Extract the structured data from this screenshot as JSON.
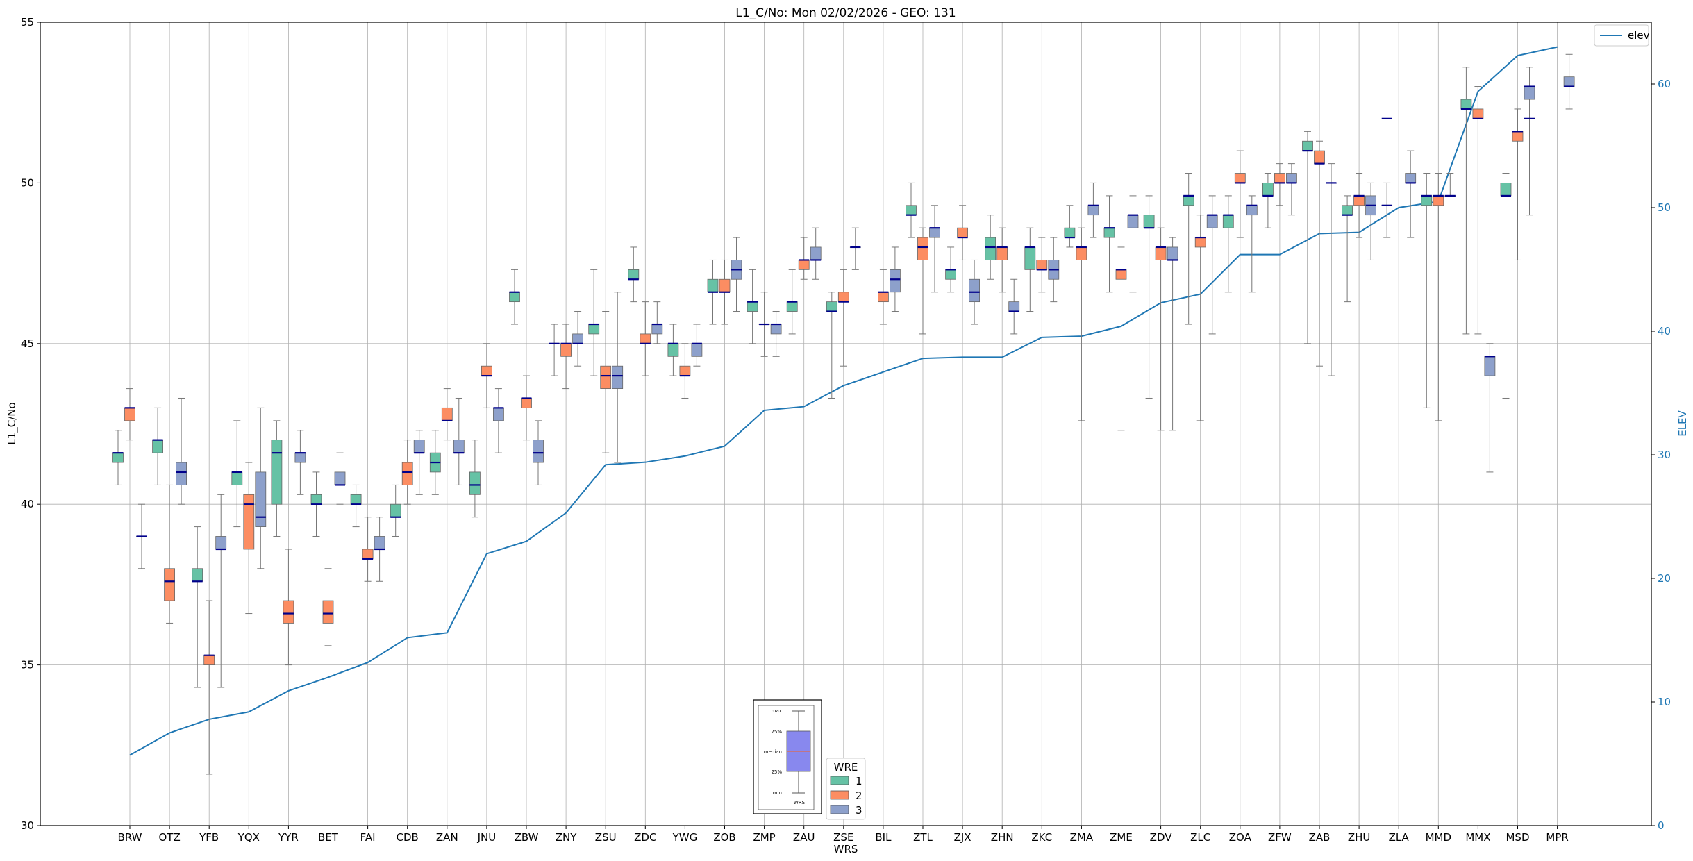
{
  "chart_data": {
    "type": "box",
    "title": "L1_C/No: Mon 02/02/2026 - GEO: 131",
    "xlabel": "WRS",
    "ylabel": "L1_C/No",
    "ylabel_right": "ELEV",
    "ylim": [
      30,
      55
    ],
    "yticks": [
      30,
      35,
      40,
      45,
      50,
      55
    ],
    "ylim_right": [
      0,
      65
    ],
    "yticks_right": [
      0,
      10,
      20,
      30,
      40,
      50,
      60
    ],
    "grid": true,
    "categories": [
      "BRW",
      "OTZ",
      "YFB",
      "YQX",
      "YYR",
      "BET",
      "FAI",
      "CDB",
      "ZAN",
      "JNU",
      "ZBW",
      "ZNY",
      "ZSU",
      "ZDC",
      "YWG",
      "ZOB",
      "ZMP",
      "ZAU",
      "ZSE",
      "BIL",
      "ZTL",
      "ZJX",
      "ZHN",
      "ZKC",
      "ZMA",
      "ZME",
      "ZDV",
      "ZLC",
      "ZOA",
      "ZFW",
      "ZAB",
      "ZHU",
      "ZLA",
      "MMD",
      "MMX",
      "MSD",
      "MPR"
    ],
    "series": [
      {
        "name": "1",
        "color": "#66c2a5",
        "boxes": [
          {
            "min": 40.6,
            "q1": 41.3,
            "median": 41.6,
            "q3": 41.6,
            "max": 42.3
          },
          {
            "min": 40.6,
            "q1": 41.6,
            "median": 42.0,
            "q3": 42.0,
            "max": 43.0
          },
          {
            "min": 34.3,
            "q1": 37.6,
            "median": 37.6,
            "q3": 38.0,
            "max": 39.3
          },
          {
            "min": 39.3,
            "q1": 40.6,
            "median": 41.0,
            "q3": 41.0,
            "max": 42.6
          },
          {
            "min": 39.0,
            "q1": 40.0,
            "median": 41.6,
            "q3": 42.0,
            "max": 42.6
          },
          {
            "min": 39.0,
            "q1": 40.0,
            "median": 40.0,
            "q3": 40.3,
            "max": 41.0
          },
          {
            "min": 39.3,
            "q1": 40.0,
            "median": 40.0,
            "q3": 40.3,
            "max": 40.6
          },
          {
            "min": 39.0,
            "q1": 39.6,
            "median": 39.6,
            "q3": 40.0,
            "max": 40.6
          },
          {
            "min": 40.3,
            "q1": 41.0,
            "median": 41.3,
            "q3": 41.6,
            "max": 42.3
          },
          {
            "min": 39.6,
            "q1": 40.3,
            "median": 40.6,
            "q3": 41.0,
            "max": 42.0
          },
          {
            "min": 45.6,
            "q1": 46.3,
            "median": 46.6,
            "q3": 46.6,
            "max": 47.3
          },
          {
            "min": 44.0,
            "q1": 45.0,
            "median": 45.0,
            "q3": 45.0,
            "max": 45.6
          },
          {
            "min": 44.0,
            "q1": 45.3,
            "median": 45.6,
            "q3": 45.6,
            "max": 47.3
          },
          {
            "min": 46.3,
            "q1": 47.0,
            "median": 47.0,
            "q3": 47.3,
            "max": 48.0
          },
          {
            "min": 44.0,
            "q1": 44.6,
            "median": 45.0,
            "q3": 45.0,
            "max": 45.6
          },
          {
            "min": 45.6,
            "q1": 46.6,
            "median": 46.6,
            "q3": 47.0,
            "max": 47.6
          },
          {
            "min": 45.0,
            "q1": 46.0,
            "median": 46.3,
            "q3": 46.3,
            "max": 47.3
          },
          {
            "min": 45.3,
            "q1": 46.0,
            "median": 46.3,
            "q3": 46.3,
            "max": 47.3
          },
          {
            "min": 43.3,
            "q1": 46.0,
            "median": 46.0,
            "q3": 46.3,
            "max": 46.6
          },
          null,
          {
            "min": 48.3,
            "q1": 49.0,
            "median": 49.0,
            "q3": 49.3,
            "max": 50.0
          },
          {
            "min": 46.6,
            "q1": 47.0,
            "median": 47.3,
            "q3": 47.3,
            "max": 48.0
          },
          {
            "min": 47.0,
            "q1": 47.6,
            "median": 48.0,
            "q3": 48.3,
            "max": 49.0
          },
          {
            "min": 46.0,
            "q1": 47.3,
            "median": 48.0,
            "q3": 48.0,
            "max": 48.6
          },
          {
            "min": 48.0,
            "q1": 48.3,
            "median": 48.3,
            "q3": 48.6,
            "max": 49.3
          },
          {
            "min": 46.6,
            "q1": 48.3,
            "median": 48.6,
            "q3": 48.6,
            "max": 49.6
          },
          {
            "min": 43.3,
            "q1": 48.6,
            "median": 48.6,
            "q3": 49.0,
            "max": 49.6
          },
          {
            "min": 45.6,
            "q1": 49.3,
            "median": 49.6,
            "q3": 49.6,
            "max": 50.3
          },
          {
            "min": 46.6,
            "q1": 48.6,
            "median": 49.0,
            "q3": 49.0,
            "max": 49.6
          },
          {
            "min": 48.6,
            "q1": 49.6,
            "median": 49.6,
            "q3": 50.0,
            "max": 50.3
          },
          {
            "min": 45.0,
            "q1": 51.0,
            "median": 51.0,
            "q3": 51.3,
            "max": 51.6
          },
          {
            "min": 46.3,
            "q1": 49.0,
            "median": 49.0,
            "q3": 49.3,
            "max": 49.6
          },
          {
            "min": 48.3,
            "q1": 49.3,
            "median": 49.3,
            "q3": 49.3,
            "max": 50.0
          },
          {
            "min": 43.0,
            "q1": 49.3,
            "median": 49.6,
            "q3": 49.6,
            "max": 50.3
          },
          {
            "min": 45.3,
            "q1": 52.3,
            "median": 52.3,
            "q3": 52.6,
            "max": 53.6
          },
          {
            "min": 43.3,
            "q1": 49.6,
            "median": 49.6,
            "q3": 50.0,
            "max": 50.3
          },
          null
        ]
      },
      {
        "name": "2",
        "color": "#fc8d62",
        "boxes": [
          {
            "min": 42.0,
            "q1": 42.6,
            "median": 43.0,
            "q3": 43.0,
            "max": 43.6
          },
          {
            "min": 36.3,
            "q1": 37.0,
            "median": 37.6,
            "q3": 38.0,
            "max": 40.6
          },
          {
            "min": 31.6,
            "q1": 35.0,
            "median": 35.3,
            "q3": 35.3,
            "max": 37.0
          },
          {
            "min": 36.6,
            "q1": 38.6,
            "median": 40.0,
            "q3": 40.3,
            "max": 41.3
          },
          {
            "min": 35.0,
            "q1": 36.3,
            "median": 36.6,
            "q3": 37.0,
            "max": 38.6
          },
          {
            "min": 35.6,
            "q1": 36.3,
            "median": 36.6,
            "q3": 37.0,
            "max": 38.0
          },
          {
            "min": 37.6,
            "q1": 38.3,
            "median": 38.3,
            "q3": 38.6,
            "max": 39.6
          },
          {
            "min": 40.0,
            "q1": 40.6,
            "median": 41.0,
            "q3": 41.3,
            "max": 42.0
          },
          {
            "min": 42.0,
            "q1": 42.6,
            "median": 42.6,
            "q3": 43.0,
            "max": 43.6
          },
          {
            "min": 43.0,
            "q1": 44.0,
            "median": 44.0,
            "q3": 44.3,
            "max": 45.0
          },
          {
            "min": 42.0,
            "q1": 43.0,
            "median": 43.3,
            "q3": 43.3,
            "max": 44.0
          },
          {
            "min": 43.6,
            "q1": 44.6,
            "median": 45.0,
            "q3": 45.0,
            "max": 45.6
          },
          {
            "min": 41.6,
            "q1": 43.6,
            "median": 44.0,
            "q3": 44.3,
            "max": 46.0
          },
          {
            "min": 44.0,
            "q1": 45.0,
            "median": 45.0,
            "q3": 45.3,
            "max": 46.3
          },
          {
            "min": 43.3,
            "q1": 44.0,
            "median": 44.0,
            "q3": 44.3,
            "max": 45.0
          },
          {
            "min": 45.6,
            "q1": 46.6,
            "median": 46.6,
            "q3": 47.0,
            "max": 47.6
          },
          {
            "min": 44.6,
            "q1": 45.6,
            "median": 45.6,
            "q3": 45.6,
            "max": 46.6
          },
          {
            "min": 47.0,
            "q1": 47.3,
            "median": 47.6,
            "q3": 47.6,
            "max": 48.3
          },
          {
            "min": 44.3,
            "q1": 46.3,
            "median": 46.3,
            "q3": 46.6,
            "max": 47.3
          },
          {
            "min": 45.6,
            "q1": 46.3,
            "median": 46.6,
            "q3": 46.6,
            "max": 47.3
          },
          {
            "min": 45.3,
            "q1": 47.6,
            "median": 48.0,
            "q3": 48.3,
            "max": 48.6
          },
          {
            "min": 47.6,
            "q1": 48.3,
            "median": 48.3,
            "q3": 48.6,
            "max": 49.3
          },
          {
            "min": 46.6,
            "q1": 47.6,
            "median": 48.0,
            "q3": 48.0,
            "max": 48.6
          },
          {
            "min": 46.6,
            "q1": 47.3,
            "median": 47.3,
            "q3": 47.6,
            "max": 48.3
          },
          {
            "min": 42.6,
            "q1": 47.6,
            "median": 48.0,
            "q3": 48.0,
            "max": 48.6
          },
          {
            "min": 42.3,
            "q1": 47.0,
            "median": 47.3,
            "q3": 47.3,
            "max": 48.0
          },
          {
            "min": 42.3,
            "q1": 47.6,
            "median": 48.0,
            "q3": 48.0,
            "max": 48.6
          },
          {
            "min": 42.6,
            "q1": 48.0,
            "median": 48.3,
            "q3": 48.3,
            "max": 49.0
          },
          {
            "min": 48.3,
            "q1": 50.0,
            "median": 50.0,
            "q3": 50.3,
            "max": 51.0
          },
          {
            "min": 49.3,
            "q1": 50.0,
            "median": 50.0,
            "q3": 50.3,
            "max": 50.6
          },
          {
            "min": 44.3,
            "q1": 50.6,
            "median": 50.6,
            "q3": 51.0,
            "max": 51.3
          },
          {
            "min": 48.3,
            "q1": 49.3,
            "median": 49.6,
            "q3": 49.6,
            "max": 50.3
          },
          null,
          {
            "min": 42.6,
            "q1": 49.3,
            "median": 49.6,
            "q3": 49.6,
            "max": 50.3
          },
          {
            "min": 45.3,
            "q1": 52.0,
            "median": 52.0,
            "q3": 52.3,
            "max": 53.0
          },
          {
            "min": 47.6,
            "q1": 51.3,
            "median": 51.6,
            "q3": 51.6,
            "max": 52.3
          },
          null
        ]
      },
      {
        "name": "3",
        "color": "#8da0cb",
        "boxes": [
          {
            "min": 38.0,
            "q1": 39.0,
            "median": 39.0,
            "q3": 39.0,
            "max": 40.0
          },
          {
            "min": 40.0,
            "q1": 40.6,
            "median": 41.0,
            "q3": 41.3,
            "max": 43.3
          },
          {
            "min": 34.3,
            "q1": 38.6,
            "median": 38.6,
            "q3": 39.0,
            "max": 40.3
          },
          {
            "min": 38.0,
            "q1": 39.3,
            "median": 39.6,
            "q3": 41.0,
            "max": 43.0
          },
          {
            "min": 40.3,
            "q1": 41.3,
            "median": 41.6,
            "q3": 41.6,
            "max": 42.3
          },
          {
            "min": 40.0,
            "q1": 40.6,
            "median": 40.6,
            "q3": 41.0,
            "max": 41.6
          },
          {
            "min": 37.6,
            "q1": 38.6,
            "median": 38.6,
            "q3": 39.0,
            "max": 39.6
          },
          {
            "min": 40.3,
            "q1": 41.6,
            "median": 41.6,
            "q3": 42.0,
            "max": 42.3
          },
          {
            "min": 40.6,
            "q1": 41.6,
            "median": 41.6,
            "q3": 42.0,
            "max": 43.3
          },
          {
            "min": 41.6,
            "q1": 42.6,
            "median": 43.0,
            "q3": 43.0,
            "max": 43.6
          },
          {
            "min": 40.6,
            "q1": 41.3,
            "median": 41.6,
            "q3": 42.0,
            "max": 42.6
          },
          {
            "min": 44.3,
            "q1": 45.0,
            "median": 45.0,
            "q3": 45.3,
            "max": 46.0
          },
          {
            "min": 41.3,
            "q1": 43.6,
            "median": 44.0,
            "q3": 44.3,
            "max": 46.6
          },
          {
            "min": 45.0,
            "q1": 45.3,
            "median": 45.6,
            "q3": 45.6,
            "max": 46.3
          },
          {
            "min": 44.3,
            "q1": 44.6,
            "median": 45.0,
            "q3": 45.0,
            "max": 45.6
          },
          {
            "min": 46.0,
            "q1": 47.0,
            "median": 47.3,
            "q3": 47.6,
            "max": 48.3
          },
          {
            "min": 44.6,
            "q1": 45.3,
            "median": 45.6,
            "q3": 45.6,
            "max": 46.0
          },
          {
            "min": 47.0,
            "q1": 47.6,
            "median": 47.6,
            "q3": 48.0,
            "max": 48.6
          },
          {
            "min": 47.3,
            "q1": 48.0,
            "median": 48.0,
            "q3": 48.0,
            "max": 48.6
          },
          {
            "min": 46.0,
            "q1": 46.6,
            "median": 47.0,
            "q3": 47.3,
            "max": 48.0
          },
          {
            "min": 46.6,
            "q1": 48.3,
            "median": 48.6,
            "q3": 48.6,
            "max": 49.3
          },
          {
            "min": 45.6,
            "q1": 46.3,
            "median": 46.6,
            "q3": 47.0,
            "max": 47.6
          },
          {
            "min": 45.3,
            "q1": 46.0,
            "median": 46.0,
            "q3": 46.3,
            "max": 47.0
          },
          {
            "min": 46.3,
            "q1": 47.0,
            "median": 47.3,
            "q3": 47.6,
            "max": 48.3
          },
          {
            "min": 48.3,
            "q1": 49.0,
            "median": 49.3,
            "q3": 49.3,
            "max": 50.0
          },
          {
            "min": 46.6,
            "q1": 48.6,
            "median": 49.0,
            "q3": 49.0,
            "max": 49.6
          },
          {
            "min": 42.3,
            "q1": 47.6,
            "median": 47.6,
            "q3": 48.0,
            "max": 48.3
          },
          {
            "min": 45.3,
            "q1": 48.6,
            "median": 49.0,
            "q3": 49.0,
            "max": 49.6
          },
          {
            "min": 46.6,
            "q1": 49.0,
            "median": 49.3,
            "q3": 49.3,
            "max": 49.6
          },
          {
            "min": 49.0,
            "q1": 50.0,
            "median": 50.0,
            "q3": 50.3,
            "max": 50.6
          },
          {
            "min": 44.0,
            "q1": 50.0,
            "median": 50.0,
            "q3": 50.0,
            "max": 50.6
          },
          {
            "min": 47.6,
            "q1": 49.0,
            "median": 49.3,
            "q3": 49.6,
            "max": 50.0
          },
          {
            "min": 48.3,
            "q1": 50.0,
            "median": 50.0,
            "q3": 50.3,
            "max": 51.0
          },
          {
            "min": 49.6,
            "q1": 49.6,
            "median": 49.6,
            "q3": 49.6,
            "max": 50.3
          },
          {
            "min": 41.0,
            "q1": 44.0,
            "median": 44.6,
            "q3": 44.6,
            "max": 45.0
          },
          {
            "min": 49.0,
            "q1": 52.6,
            "median": 53.0,
            "q3": 53.0,
            "max": 53.6
          },
          {
            "min": 52.3,
            "q1": 53.0,
            "median": 53.0,
            "q3": 53.3,
            "max": 54.0
          }
        ]
      }
    ],
    "singletons": [
      {
        "category": "ZLA",
        "series": "1",
        "value": 52.0
      },
      {
        "category": "MSD",
        "series": "3",
        "value": 52.0
      }
    ],
    "line": {
      "name": "elev",
      "color": "#1f77b4",
      "axis": "right",
      "values": [
        5.7,
        7.5,
        8.6,
        9.2,
        10.9,
        12.0,
        13.2,
        15.2,
        15.6,
        22.0,
        23.0,
        25.3,
        29.2,
        29.4,
        29.9,
        30.7,
        33.6,
        33.9,
        35.6,
        36.7,
        37.8,
        37.9,
        37.9,
        39.5,
        39.6,
        40.4,
        42.3,
        43.0,
        46.2,
        46.2,
        47.9,
        48.0,
        50.0,
        50.5,
        59.4,
        62.3,
        63.0
      ]
    },
    "legend_elev": {
      "label": "elev",
      "position": "top-right"
    },
    "legend_wre": {
      "title": "WRE",
      "labels": [
        "1",
        "2",
        "3"
      ],
      "position": "bottom-center"
    },
    "box_key": {
      "labels": [
        "max",
        "75%",
        "median",
        "25%",
        "min"
      ],
      "caption": "WRS"
    }
  }
}
